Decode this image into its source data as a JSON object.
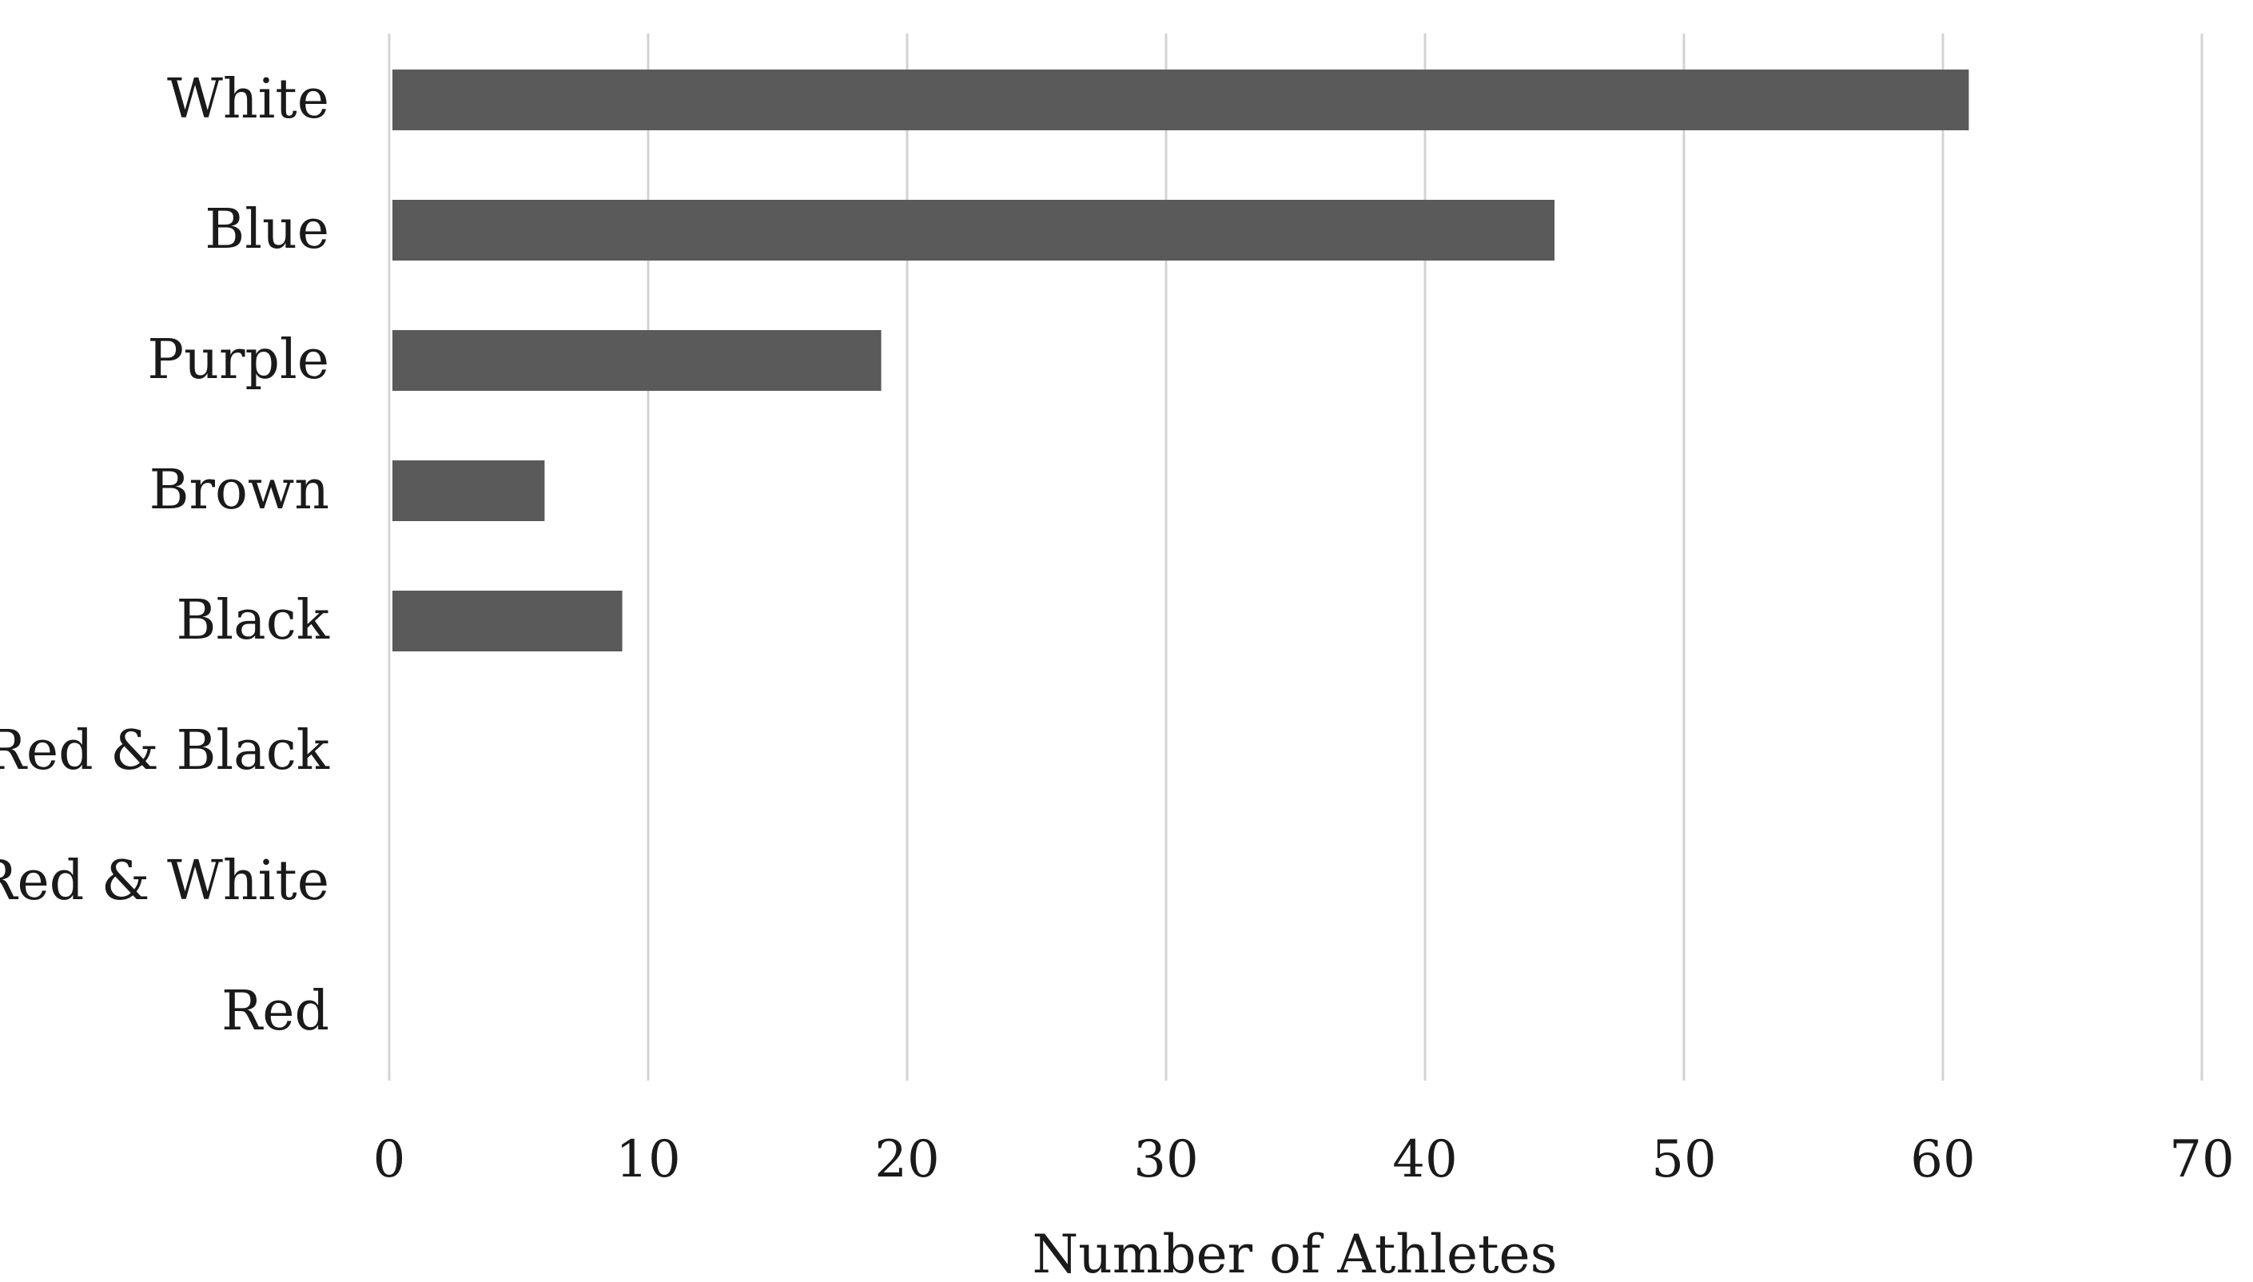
{
  "chart_data": {
    "type": "bar",
    "orientation": "horizontal",
    "title": "",
    "xlabel": "Number of Athletes",
    "ylabel": "",
    "categories": [
      "White",
      "Blue",
      "Purple",
      "Brown",
      "Black",
      "Red & Black",
      "Red & White",
      "Red"
    ],
    "values": [
      61,
      45,
      19,
      6,
      9,
      0,
      0,
      0
    ],
    "xlim": [
      0,
      70
    ],
    "xticks": [
      "0",
      "10",
      "20",
      "30",
      "40",
      "50",
      "60",
      "70"
    ],
    "grid": "vertical",
    "legend": "none",
    "bar_color": "#5a5a5a",
    "grid_color": "#d3d3d3"
  }
}
